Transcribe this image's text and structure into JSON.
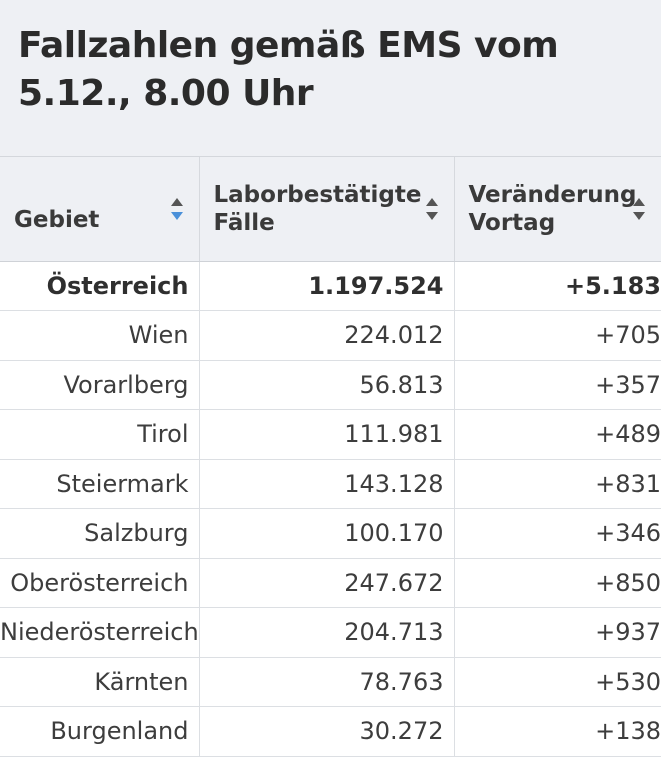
{
  "title": "Fallzahlen gemäß EMS vom 5.12., 8.00 Uhr",
  "columns": [
    {
      "label": "Gebiet",
      "sort": "sort-ascending-icon"
    },
    {
      "label": "Laborbestätigte Fälle",
      "sort": "sort-both-icon"
    },
    {
      "label": "Veränderung Vortag",
      "sort": "sort-both-icon"
    }
  ],
  "colors": {
    "sort_active": "#4a90d9",
    "sort_inactive": "#555555",
    "header_bg": "#eef0f4"
  },
  "rows": [
    {
      "region": "Österreich",
      "cases": "1.197.524",
      "change": "+5.183"
    },
    {
      "region": "Wien",
      "cases": "224.012",
      "change": "+705"
    },
    {
      "region": "Vorarlberg",
      "cases": "56.813",
      "change": "+357"
    },
    {
      "region": "Tirol",
      "cases": "111.981",
      "change": "+489"
    },
    {
      "region": "Steiermark",
      "cases": "143.128",
      "change": "+831"
    },
    {
      "region": "Salzburg",
      "cases": "100.170",
      "change": "+346"
    },
    {
      "region": "Oberösterreich",
      "cases": "247.672",
      "change": "+850"
    },
    {
      "region": "Niederösterreich",
      "cases": "204.713",
      "change": "+937"
    },
    {
      "region": "Kärnten",
      "cases": "78.763",
      "change": "+530"
    },
    {
      "region": "Burgenland",
      "cases": "30.272",
      "change": "+138"
    }
  ]
}
